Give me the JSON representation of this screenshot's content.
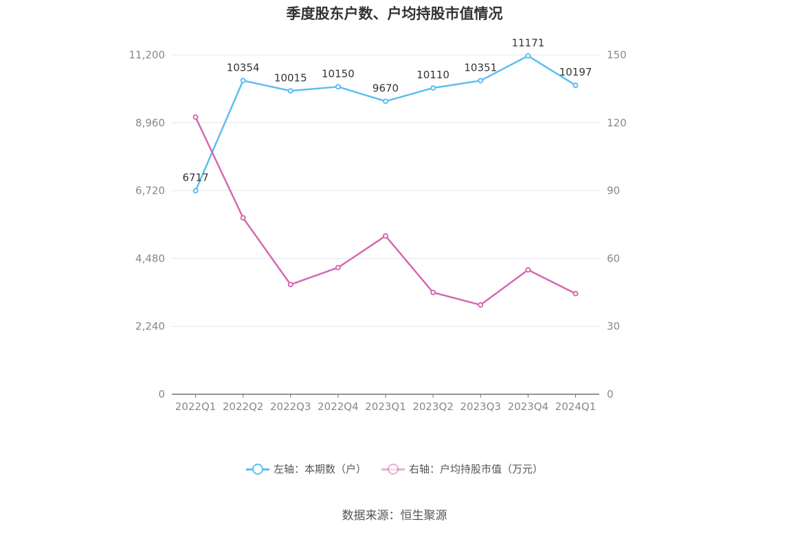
{
  "chart_data": {
    "type": "line",
    "title": "季度股东户数、户均持股市值情况",
    "categories": [
      "2022Q1",
      "2022Q2",
      "2022Q3",
      "2022Q4",
      "2023Q1",
      "2023Q2",
      "2023Q3",
      "2023Q4",
      "2024Q1"
    ],
    "left_axis": {
      "ylim": [
        0,
        11200
      ],
      "ticks": [
        "0",
        "2,240",
        "4,480",
        "6,720",
        "8,960",
        "11,200"
      ]
    },
    "right_axis": {
      "ylim": [
        0,
        150
      ],
      "ticks": [
        "0",
        "30",
        "60",
        "90",
        "120",
        "150"
      ]
    },
    "series": [
      {
        "name": "左轴：本期数（户）",
        "axis": "left",
        "color": "#5bbdf0",
        "values": [
          6717,
          10354,
          10015,
          10150,
          9670,
          10110,
          10351,
          11171,
          10197
        ],
        "labels": [
          "6717",
          "10354",
          "10015",
          "10150",
          "9670",
          "10110",
          "10351",
          "11171",
          "10197"
        ]
      },
      {
        "name": "右轴：户均持股市值（万元）",
        "axis": "right",
        "color": "#d667b2",
        "values": [
          122.5,
          78,
          48.5,
          56,
          70,
          45,
          39.5,
          55,
          44.5
        ]
      }
    ],
    "grid": true,
    "legend_position": "bottom-center"
  },
  "source": "数据来源：恒生聚源"
}
